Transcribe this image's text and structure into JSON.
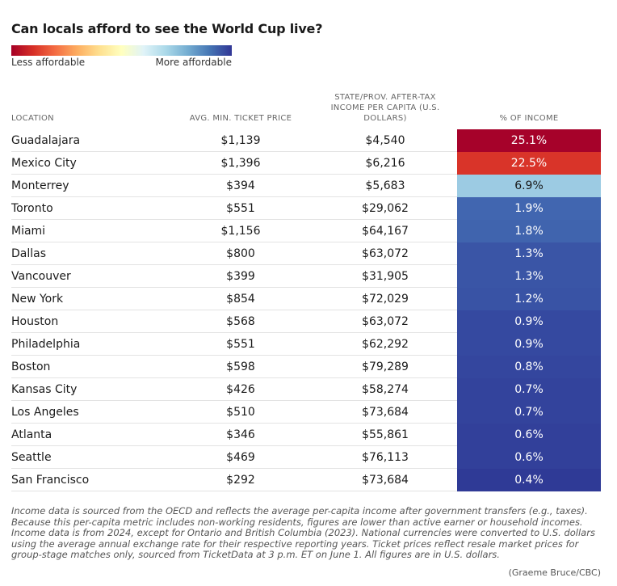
{
  "title": "Can locals afford to see the World Cup live?",
  "legend": {
    "left_label": "Less affordable",
    "right_label": "More affordable",
    "gradient_colors": [
      "#a50026",
      "#d73027",
      "#f46d43",
      "#fdae61",
      "#fee090",
      "#ffffbf",
      "#e0f3f8",
      "#abd9e9",
      "#74add1",
      "#4575b4",
      "#313695"
    ]
  },
  "headers": {
    "location": "LOCATION",
    "ticket": "AVG. MIN. TICKET PRICE",
    "income_lines": [
      "STATE/PROV. AFTER-TAX",
      "INCOME PER CAPITA (U.S.",
      "DOLLARS)"
    ],
    "pct": "% OF INCOME"
  },
  "chart_data": {
    "type": "table",
    "columns": [
      "LOCATION",
      "AVG. MIN. TICKET PRICE",
      "STATE/PROV. AFTER-TAX INCOME PER CAPITA (U.S. DOLLARS)",
      "% OF INCOME"
    ],
    "rows": [
      {
        "location": "Guadalajara",
        "ticket": "$1,139",
        "income": "$4,540",
        "pct": "25.1%",
        "pct_value": 25.1,
        "color": "#a6022a",
        "text_color": "#ffffff"
      },
      {
        "location": "Mexico City",
        "ticket": "$1,396",
        "income": "$6,216",
        "pct": "22.5%",
        "pct_value": 22.5,
        "color": "#d93429",
        "text_color": "#ffffff"
      },
      {
        "location": "Monterrey",
        "ticket": "$394",
        "income": "$5,683",
        "pct": "6.9%",
        "pct_value": 6.9,
        "color": "#9ccbe3",
        "text_color": "#1a1a1a"
      },
      {
        "location": "Toronto",
        "ticket": "$551",
        "income": "$29,062",
        "pct": "1.9%",
        "pct_value": 1.9,
        "color": "#4166b0",
        "text_color": "#ffffff"
      },
      {
        "location": "Miami",
        "ticket": "$1,156",
        "income": "$64,167",
        "pct": "1.8%",
        "pct_value": 1.8,
        "color": "#4064ae",
        "text_color": "#ffffff"
      },
      {
        "location": "Dallas",
        "ticket": "$800",
        "income": "$63,072",
        "pct": "1.3%",
        "pct_value": 1.3,
        "color": "#3a55a6",
        "text_color": "#ffffff"
      },
      {
        "location": "Vancouver",
        "ticket": "$399",
        "income": "$31,905",
        "pct": "1.3%",
        "pct_value": 1.3,
        "color": "#3a55a6",
        "text_color": "#ffffff"
      },
      {
        "location": "New York",
        "ticket": "$854",
        "income": "$72,029",
        "pct": "1.2%",
        "pct_value": 1.2,
        "color": "#3953a5",
        "text_color": "#ffffff"
      },
      {
        "location": "Houston",
        "ticket": "$568",
        "income": "$63,072",
        "pct": "0.9%",
        "pct_value": 0.9,
        "color": "#3549a0",
        "text_color": "#ffffff"
      },
      {
        "location": "Philadelphia",
        "ticket": "$551",
        "income": "$62,292",
        "pct": "0.9%",
        "pct_value": 0.9,
        "color": "#3549a0",
        "text_color": "#ffffff"
      },
      {
        "location": "Boston",
        "ticket": "$598",
        "income": "$79,289",
        "pct": "0.8%",
        "pct_value": 0.8,
        "color": "#34469e",
        "text_color": "#ffffff"
      },
      {
        "location": "Kansas City",
        "ticket": "$426",
        "income": "$58,274",
        "pct": "0.7%",
        "pct_value": 0.7,
        "color": "#33439c",
        "text_color": "#ffffff"
      },
      {
        "location": "Los Angeles",
        "ticket": "$510",
        "income": "$73,684",
        "pct": "0.7%",
        "pct_value": 0.7,
        "color": "#33439c",
        "text_color": "#ffffff"
      },
      {
        "location": "Atlanta",
        "ticket": "$346",
        "income": "$55,861",
        "pct": "0.6%",
        "pct_value": 0.6,
        "color": "#32409a",
        "text_color": "#ffffff"
      },
      {
        "location": "Seattle",
        "ticket": "$469",
        "income": "$76,113",
        "pct": "0.6%",
        "pct_value": 0.6,
        "color": "#32409a",
        "text_color": "#ffffff"
      },
      {
        "location": "San Francisco",
        "ticket": "$292",
        "income": "$73,684",
        "pct": "0.4%",
        "pct_value": 0.4,
        "color": "#2f3a96",
        "text_color": "#ffffff"
      }
    ]
  },
  "footnote": "Income data is sourced from the OECD and reflects the average per-capita income after government transfers (e.g., taxes). Because this per-capita metric includes non-working residents, figures are lower than active earner or household incomes. Income data is from 2024, except for Ontario and British Columbia (2023). National currencies were converted to U.S. dollars using the average annual exchange rate for their respective reporting years. Ticket prices reflect resale market prices for group-stage matches only, sourced from TicketData at 3 p.m. ET on June 1. All figures are in U.S. dollars.",
  "credit": "(Graeme Bruce/CBC)"
}
